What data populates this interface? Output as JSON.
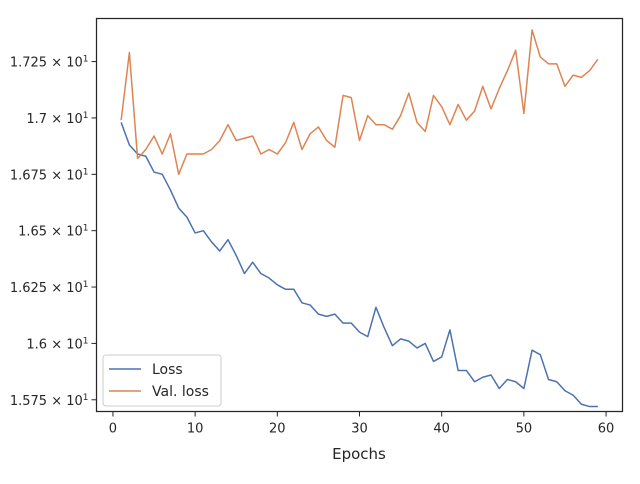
{
  "chart_data": {
    "type": "line",
    "title": "",
    "xlabel": "Epochs",
    "ylabel": "",
    "xlim": [
      -2,
      62
    ],
    "ylim": [
      15.698,
      17.441
    ],
    "x_ticks": [
      {
        "value": 0,
        "label": "0"
      },
      {
        "value": 10,
        "label": "10"
      },
      {
        "value": 20,
        "label": "20"
      },
      {
        "value": 30,
        "label": "30"
      },
      {
        "value": 40,
        "label": "40"
      },
      {
        "value": 50,
        "label": "50"
      },
      {
        "value": 60,
        "label": "60"
      }
    ],
    "y_ticks": [
      {
        "value": 15.75,
        "mantissa": "1.575",
        "base": "10",
        "exp": "1"
      },
      {
        "value": 16.0,
        "mantissa": "1.6",
        "base": "10",
        "exp": "1"
      },
      {
        "value": 16.25,
        "mantissa": "1.625",
        "base": "10",
        "exp": "1"
      },
      {
        "value": 16.5,
        "mantissa": "1.65",
        "base": "10",
        "exp": "1"
      },
      {
        "value": 16.75,
        "mantissa": "1.675",
        "base": "10",
        "exp": "1"
      },
      {
        "value": 17.0,
        "mantissa": "1.7",
        "base": "10",
        "exp": "1"
      },
      {
        "value": 17.25,
        "mantissa": "1.725",
        "base": "10",
        "exp": "1"
      }
    ],
    "grid": false,
    "legend_position": "bottom-left",
    "x": [
      1,
      2,
      3,
      4,
      5,
      6,
      7,
      8,
      9,
      10,
      11,
      12,
      13,
      14,
      15,
      16,
      17,
      18,
      19,
      20,
      21,
      22,
      23,
      24,
      25,
      26,
      27,
      28,
      29,
      30,
      31,
      32,
      33,
      34,
      35,
      36,
      37,
      38,
      39,
      40,
      41,
      42,
      43,
      44,
      45,
      46,
      47,
      48,
      49,
      50,
      51,
      52,
      53,
      54,
      55,
      56,
      57,
      58,
      59
    ],
    "series": [
      {
        "name": "Loss",
        "color": "#4c72b0",
        "values": [
          16.98,
          16.88,
          16.84,
          16.83,
          16.76,
          16.75,
          16.68,
          16.6,
          16.56,
          16.49,
          16.5,
          16.45,
          16.41,
          16.46,
          16.39,
          16.31,
          16.36,
          16.31,
          16.29,
          16.26,
          16.24,
          16.24,
          16.18,
          16.17,
          16.13,
          16.12,
          16.13,
          16.09,
          16.09,
          16.05,
          16.03,
          16.16,
          16.07,
          15.99,
          16.02,
          16.01,
          15.98,
          16.0,
          15.92,
          15.94,
          16.06,
          15.88,
          15.88,
          15.83,
          15.85,
          15.86,
          15.8,
          15.84,
          15.83,
          15.8,
          15.97,
          15.95,
          15.84,
          15.83,
          15.79,
          15.77,
          15.73,
          15.72,
          15.72
        ]
      },
      {
        "name": "Val. loss",
        "color": "#dd8452",
        "values": [
          16.99,
          17.29,
          16.82,
          16.86,
          16.92,
          16.84,
          16.93,
          16.75,
          16.84,
          16.84,
          16.84,
          16.86,
          16.9,
          16.97,
          16.9,
          16.91,
          16.92,
          16.84,
          16.86,
          16.84,
          16.89,
          16.98,
          16.86,
          16.93,
          16.96,
          16.9,
          16.87,
          17.1,
          17.09,
          16.9,
          17.01,
          16.97,
          16.97,
          16.95,
          17.01,
          17.11,
          16.98,
          16.94,
          17.1,
          17.05,
          16.97,
          17.06,
          16.99,
          17.03,
          17.14,
          17.04,
          17.13,
          17.21,
          17.3,
          17.02,
          17.39,
          17.27,
          17.24,
          17.24,
          17.14,
          17.19,
          17.18,
          17.21,
          17.26
        ]
      }
    ]
  }
}
